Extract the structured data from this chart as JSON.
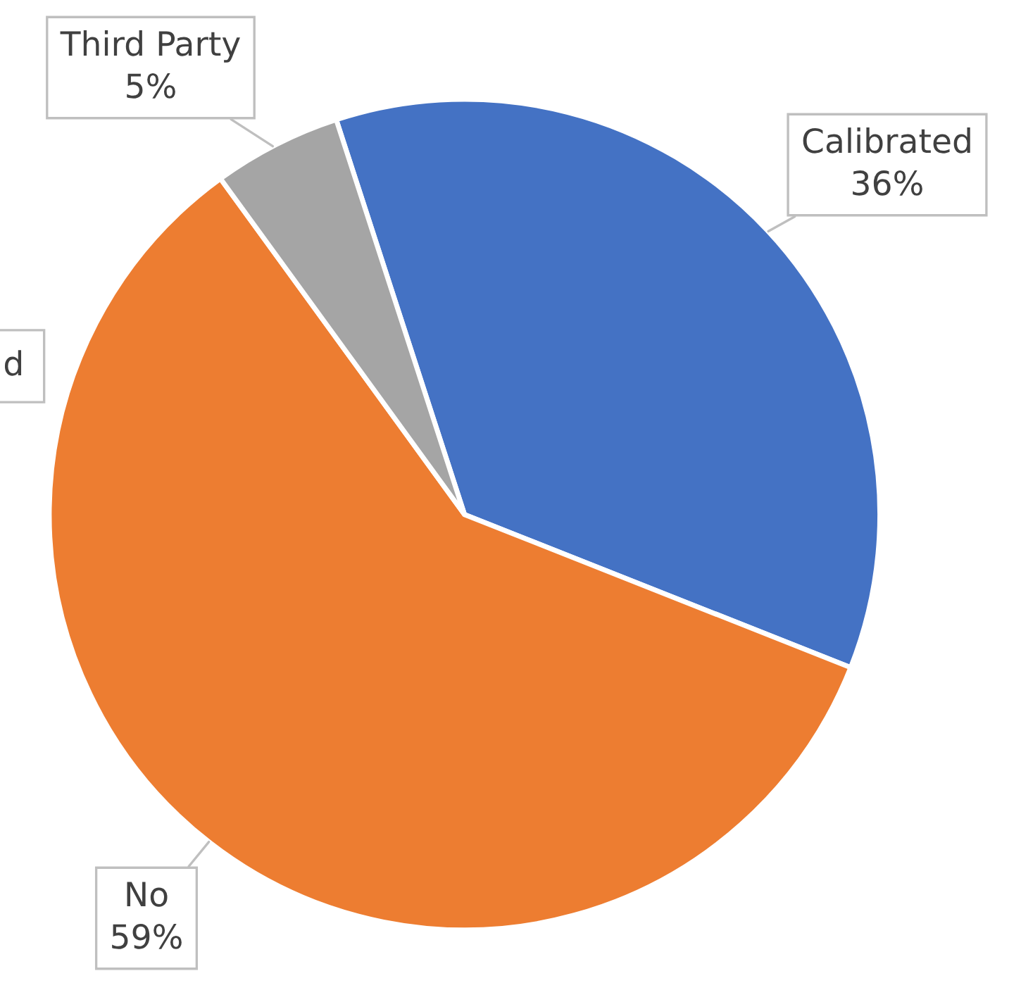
{
  "chart_data": {
    "type": "pie",
    "categories": [
      "Calibrated",
      "No",
      "Third Party"
    ],
    "values": [
      36,
      59,
      5
    ],
    "value_labels": [
      "36%",
      "59%",
      "5%"
    ],
    "colors": [
      "#4472c4",
      "#ed7d31",
      "#a5a5a5"
    ],
    "annotations": [
      "d"
    ]
  }
}
